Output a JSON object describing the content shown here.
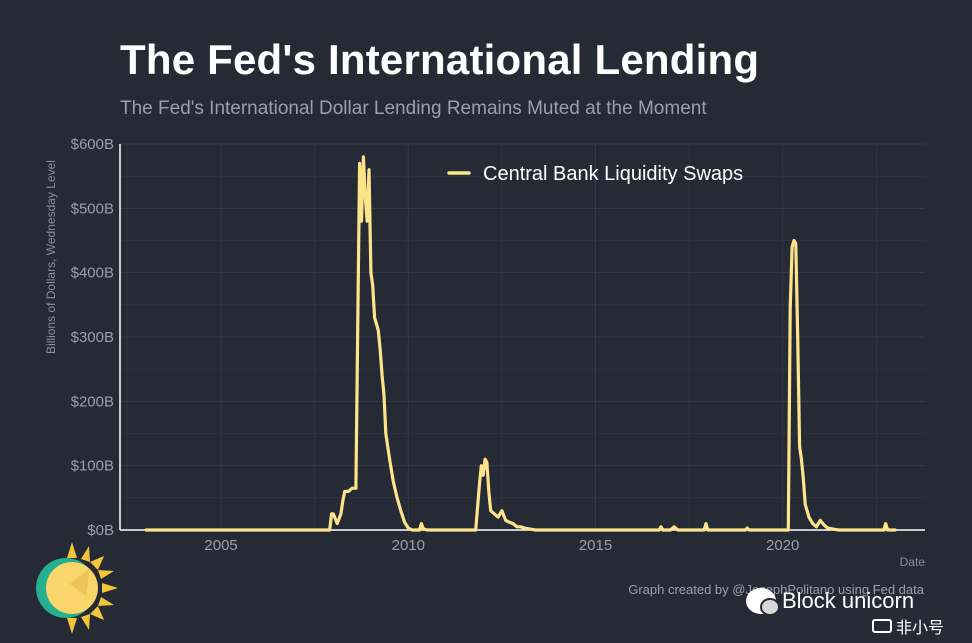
{
  "header": {
    "title": "The Fed's International Lending",
    "subtitle": "The Fed's International Dollar Lending Remains Muted at the Moment"
  },
  "caption": "Graph created by @JosephPolitano using Fed data",
  "watermark": {
    "text": "Block unicorn",
    "secondary_text": "非小号"
  },
  "colors": {
    "background": "#252a34",
    "line": "#fde38a",
    "grid": "#343a46",
    "axis": "#ffffff",
    "text_muted": "#9aa0ab"
  },
  "chart_data": {
    "type": "line",
    "title": "The Fed's International Lending",
    "subtitle": "The Fed's International Dollar Lending Remains Muted at the Moment",
    "xlabel": "Date",
    "ylabel": "Billions of Dollars, Wednesday Level",
    "xlim": [
      2002.3,
      2023.8
    ],
    "ylim": [
      0,
      600
    ],
    "x_ticks": [
      2005,
      2010,
      2015,
      2020
    ],
    "x_tick_labels": [
      "2005",
      "2010",
      "2015",
      "2020"
    ],
    "y_ticks": [
      0,
      100,
      200,
      300,
      400,
      500,
      600
    ],
    "y_tick_labels": [
      "$0B",
      "$100B",
      "$200B",
      "$300B",
      "$400B",
      "$500B",
      "$600B"
    ],
    "grid": true,
    "legend_position": "top-right",
    "series": [
      {
        "name": "Central Bank Liquidity Swaps",
        "color": "#fde38a",
        "x": [
          2003.0,
          2007.9,
          2007.95,
          2008.0,
          2008.1,
          2008.2,
          2008.25,
          2008.3,
          2008.4,
          2008.5,
          2008.6,
          2008.7,
          2008.75,
          2008.8,
          2008.85,
          2008.9,
          2008.95,
          2009.0,
          2009.05,
          2009.1,
          2009.15,
          2009.2,
          2009.25,
          2009.3,
          2009.35,
          2009.4,
          2009.5,
          2009.6,
          2009.7,
          2009.8,
          2009.9,
          2010.0,
          2010.1,
          2010.2,
          2010.3,
          2010.35,
          2010.4,
          2010.5,
          2010.6,
          2011.8,
          2011.9,
          2011.95,
          2012.0,
          2012.05,
          2012.1,
          2012.15,
          2012.2,
          2012.3,
          2012.4,
          2012.5,
          2012.6,
          2012.7,
          2012.8,
          2012.9,
          2013.0,
          2013.1,
          2013.2,
          2013.4,
          2013.6,
          2014.0,
          2016.7,
          2016.75,
          2016.8,
          2017.0,
          2017.1,
          2017.2,
          2017.6,
          2017.9,
          2017.95,
          2018.0,
          2018.1,
          2019.0,
          2019.05,
          2019.1,
          2020.0,
          2020.15,
          2020.2,
          2020.25,
          2020.3,
          2020.35,
          2020.4,
          2020.45,
          2020.5,
          2020.55,
          2020.6,
          2020.7,
          2020.8,
          2020.9,
          2021.0,
          2021.1,
          2021.2,
          2021.3,
          2021.4,
          2021.5,
          2022.0,
          2022.5,
          2022.7,
          2022.75,
          2022.8,
          2022.9,
          2023.0
        ],
        "y": [
          0,
          0,
          25,
          25,
          10,
          25,
          45,
          60,
          60,
          65,
          65,
          570,
          480,
          580,
          520,
          480,
          560,
          400,
          380,
          330,
          320,
          310,
          280,
          240,
          210,
          150,
          110,
          75,
          50,
          30,
          12,
          3,
          0,
          0,
          0,
          10,
          2,
          0,
          0,
          0,
          70,
          100,
          85,
          110,
          105,
          60,
          30,
          25,
          20,
          30,
          15,
          12,
          10,
          5,
          5,
          3,
          2,
          0,
          0,
          0,
          0,
          5,
          0,
          0,
          5,
          0,
          0,
          0,
          10,
          0,
          0,
          0,
          3,
          0,
          0,
          0,
          345,
          440,
          450,
          445,
          300,
          130,
          110,
          80,
          40,
          20,
          10,
          5,
          15,
          8,
          3,
          2,
          1,
          0,
          0,
          0,
          0,
          10,
          0,
          0,
          0
        ]
      }
    ]
  }
}
